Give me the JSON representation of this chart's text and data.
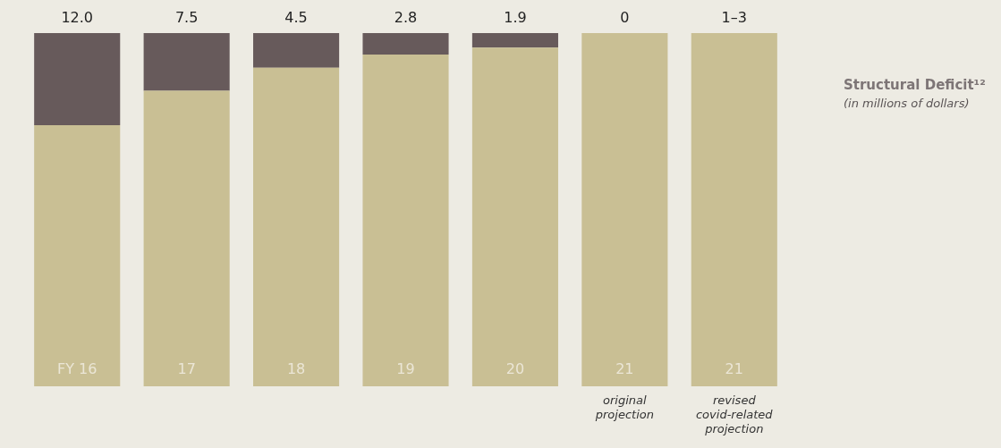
{
  "chart_data": {
    "type": "bar",
    "stacked": true,
    "ylim": [
      0,
      46
    ],
    "title": "Structural Deficit¹²",
    "subtitle": "(in millions of dollars)",
    "categories": [
      "FY 16",
      "17",
      "18",
      "19",
      "20",
      "21",
      "21"
    ],
    "series": [
      {
        "color": "#c9bf94",
        "values": [
          34,
          38.5,
          41.5,
          43.2,
          44.1,
          46,
          46
        ]
      },
      {
        "color": "#675a5b",
        "values": [
          12.0,
          7.5,
          4.5,
          2.8,
          1.9,
          0,
          null
        ],
        "value_labels": [
          "12.0",
          "7.5",
          "4.5",
          "2.8",
          "1.9",
          "0",
          "1–3"
        ]
      }
    ],
    "annotations": [
      "original projection",
      "revised covid-related projection"
    ],
    "tick_labels": false,
    "legend": false
  }
}
